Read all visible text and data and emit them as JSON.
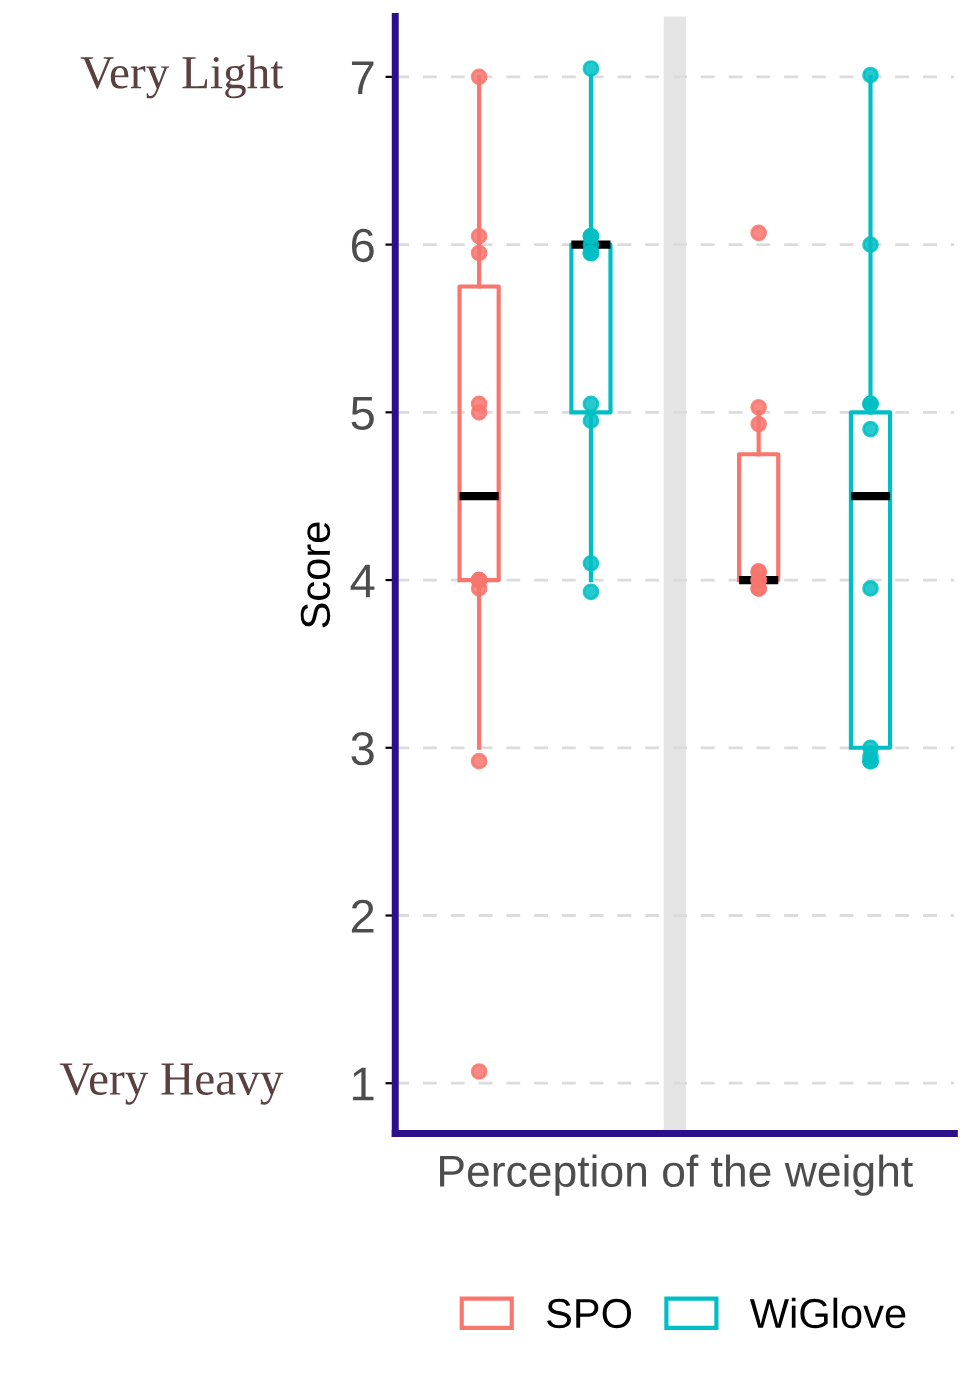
{
  "chart_data": {
    "type": "box",
    "xlabel": "Perception of the weight",
    "ylabel": "Score",
    "categories": [
      null,
      null
    ],
    "series": [
      {
        "name": "SPO",
        "color": "#f8766d",
        "boxes": [
          {
            "low": 3,
            "q1": 4,
            "median": 4.5,
            "q3": 5.75,
            "high": 7,
            "outliers": [
              7.0,
              6.05,
              5.95,
              5.05,
              5.0,
              4.0,
              4.0,
              4.0,
              3.95,
              2.92,
              1.07
            ]
          },
          {
            "low": 4,
            "q1": 4,
            "median": 4,
            "q3": 4.75,
            "high": 5,
            "outliers": [
              6.07,
              5.03,
              4.93,
              4.05,
              4.05,
              4.0,
              4.0,
              3.95,
              3.95
            ]
          }
        ]
      },
      {
        "name": "WiGlove",
        "color": "#00bfc4",
        "boxes": [
          {
            "low": 4,
            "q1": 5,
            "median": 6,
            "q3": 6,
            "high": 7,
            "outliers": [
              7.05,
              6.05,
              6.05,
              6.0,
              5.95,
              5.95,
              5.05,
              4.95,
              4.1,
              3.93
            ]
          },
          {
            "low": 3,
            "q1": 3,
            "median": 4.5,
            "q3": 5,
            "high": 7,
            "outliers": [
              7.01,
              6.0,
              5.05,
              5.05,
              4.9,
              3.95,
              3.0,
              2.95,
              2.92,
              2.92
            ]
          }
        ]
      }
    ],
    "ylim": [
      0.7,
      7.36
    ],
    "yticks": [
      1,
      2,
      3,
      4,
      5,
      6,
      7
    ],
    "annotations": [
      "Very Light",
      "Very Heavy"
    ],
    "grid": "y",
    "legend": "bottom",
    "marker": "circle"
  }
}
